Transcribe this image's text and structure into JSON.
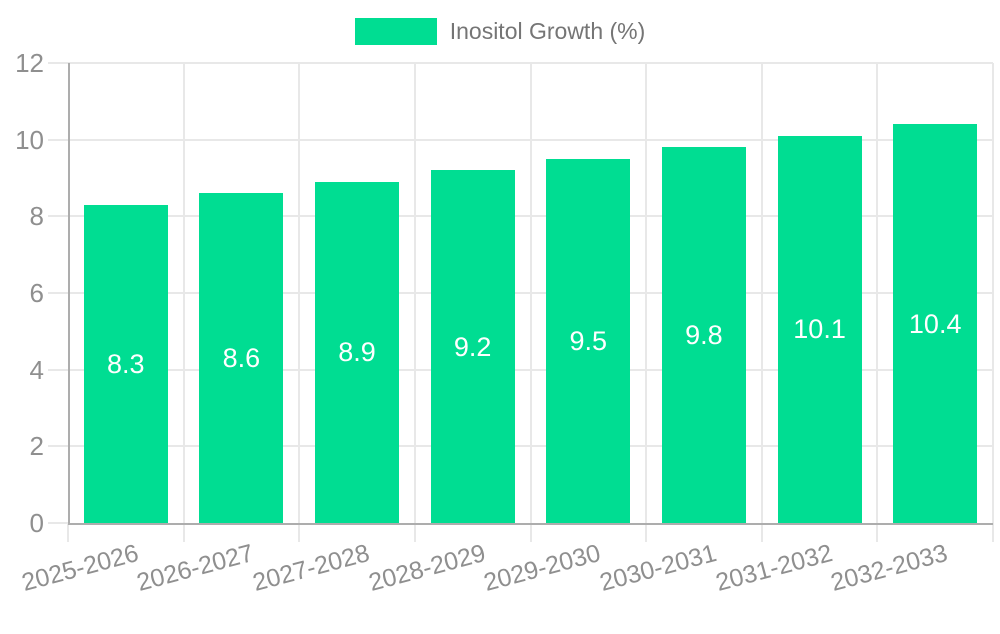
{
  "chart_data": {
    "type": "bar",
    "title": "",
    "legend": "Inositol Growth (%)",
    "legend_position": "top-center",
    "categories": [
      "2025-2026",
      "2026-2027",
      "2027-2028",
      "2028-2029",
      "2029-2030",
      "2030-2031",
      "2031-2032",
      "2032-2033"
    ],
    "series": [
      {
        "name": "Inositol Growth (%)",
        "values": [
          8.3,
          8.6,
          8.9,
          9.2,
          9.5,
          9.8,
          10.1,
          10.4
        ]
      }
    ],
    "value_labels": [
      "8.3",
      "8.6",
      "8.9",
      "9.2",
      "9.5",
      "9.8",
      "10.1",
      "10.4"
    ],
    "xlabel": "",
    "ylabel": "",
    "ylim": [
      0,
      12
    ],
    "ytick_step": 2,
    "ytick_labels": [
      "0",
      "2",
      "4",
      "6",
      "8",
      "10",
      "12"
    ],
    "x_label_rotation_deg": -15,
    "grid": true,
    "colors": {
      "bar": "#00DD92",
      "value_label": "#ffffff",
      "grid_line": "#e8e8e8",
      "axis_line": "#adadad",
      "tick_text": "#8f8f8f",
      "legend_text": "#757575",
      "background": "#ffffff"
    }
  }
}
